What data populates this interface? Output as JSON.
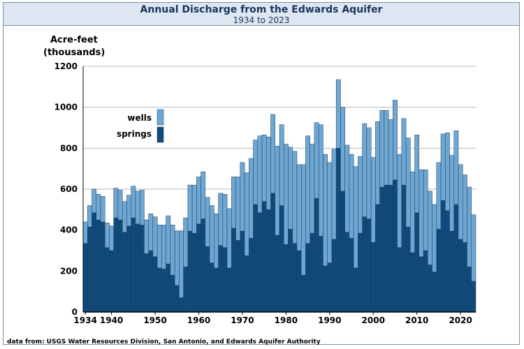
{
  "header": {
    "title": "Annual Discharge from the Edwards Aquifer",
    "subtitle": "1934 to 2023"
  },
  "footer": {
    "source": "data from:  USGS Water Resources Division, San Antonio, and Edwards Aquifer Authority"
  },
  "colors": {
    "wells": "#6fa7d3",
    "springs": "#0f4a7a",
    "bar_outline": "#1b3a5c",
    "grid": "#b9b9b9",
    "title_band": "#dde6f1",
    "title_text": "#17365d"
  },
  "chart_data": {
    "type": "bar",
    "stacked": true,
    "title": "Annual Discharge from the Edwards Aquifer",
    "subtitle": "1934 to 2023",
    "ylabel": [
      "Acre-feet",
      "(thousands)"
    ],
    "xlabel": "",
    "ylim": [
      0,
      1200
    ],
    "yticks": [
      0,
      200,
      400,
      600,
      800,
      1000,
      1200
    ],
    "xtick_labels": [
      "1934",
      "1940",
      "1950",
      "1960",
      "1970",
      "1980",
      "1990",
      "2000",
      "2010",
      "2020"
    ],
    "grid": "horizontal",
    "legend_position": "upper-left",
    "x": [
      1934,
      1935,
      1936,
      1937,
      1938,
      1939,
      1940,
      1941,
      1942,
      1943,
      1944,
      1945,
      1946,
      1947,
      1948,
      1949,
      1950,
      1951,
      1952,
      1953,
      1954,
      1955,
      1956,
      1957,
      1958,
      1959,
      1960,
      1961,
      1962,
      1963,
      1964,
      1965,
      1966,
      1967,
      1968,
      1969,
      1970,
      1971,
      1972,
      1973,
      1974,
      1975,
      1976,
      1977,
      1978,
      1979,
      1980,
      1981,
      1982,
      1983,
      1984,
      1985,
      1986,
      1987,
      1988,
      1989,
      1990,
      1991,
      1992,
      1993,
      1994,
      1995,
      1996,
      1997,
      1998,
      1999,
      2000,
      2001,
      2002,
      2003,
      2004,
      2005,
      2006,
      2007,
      2008,
      2009,
      2010,
      2011,
      2012,
      2013,
      2014,
      2015,
      2016,
      2017,
      2018,
      2019,
      2020,
      2021,
      2022,
      2023
    ],
    "series": [
      {
        "name": "springs",
        "values": [
          335,
          415,
          485,
          450,
          440,
          315,
          300,
          460,
          450,
          390,
          420,
          460,
          430,
          425,
          285,
          300,
          270,
          215,
          210,
          235,
          180,
          130,
          70,
          220,
          395,
          385,
          430,
          455,
          320,
          240,
          215,
          325,
          315,
          215,
          410,
          350,
          395,
          275,
          360,
          525,
          485,
          540,
          500,
          580,
          375,
          520,
          330,
          405,
          335,
          300,
          180,
          335,
          385,
          555,
          370,
          225,
          240,
          355,
          800,
          590,
          390,
          360,
          215,
          385,
          465,
          455,
          340,
          525,
          610,
          620,
          620,
          645,
          315,
          620,
          415,
          290,
          485,
          270,
          300,
          230,
          195,
          405,
          545,
          495,
          395,
          525,
          355,
          340,
          220,
          150
        ]
      },
      {
        "name": "wells",
        "values": [
          105,
          105,
          115,
          125,
          125,
          120,
          120,
          145,
          145,
          150,
          150,
          155,
          160,
          170,
          165,
          180,
          195,
          210,
          215,
          235,
          245,
          265,
          325,
          240,
          225,
          235,
          230,
          230,
          240,
          280,
          265,
          255,
          260,
          290,
          250,
          310,
          335,
          405,
          390,
          315,
          375,
          325,
          355,
          385,
          435,
          395,
          490,
          400,
          450,
          420,
          540,
          525,
          435,
          370,
          545,
          545,
          490,
          440,
          335,
          410,
          425,
          410,
          495,
          375,
          455,
          445,
          415,
          405,
          375,
          365,
          320,
          390,
          455,
          325,
          435,
          395,
          380,
          425,
          395,
          360,
          330,
          325,
          325,
          380,
          370,
          360,
          365,
          330,
          390,
          325
        ]
      }
    ]
  }
}
